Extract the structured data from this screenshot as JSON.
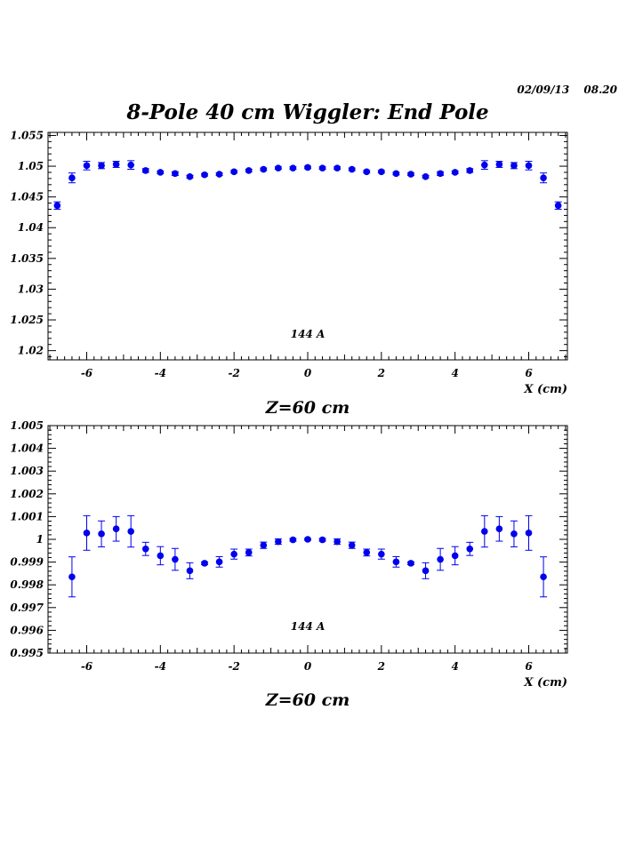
{
  "header": {
    "date": "02/09/13",
    "time": "08.20",
    "title": "8-Pole 40 cm Wiggler: End Pole"
  },
  "colors": {
    "marker": "#0000ee",
    "axis": "#000000",
    "background": "#ffffff"
  },
  "chart_data": [
    {
      "type": "scatter",
      "title": "8-Pole 40 cm Wiggler: End Pole",
      "xlabel": "X (cm)",
      "bottom_caption": "Z=60 cm",
      "annotation": "144 A",
      "xlim": [
        -7.05,
        7.05
      ],
      "ylim": [
        1.0185,
        1.0555
      ],
      "x_ticks": [
        -6,
        -4,
        -2,
        0,
        2,
        4,
        6
      ],
      "x_tick_labels": [
        "-6",
        "-4",
        "-2",
        "0",
        "2",
        "4",
        "6"
      ],
      "y_ticks": [
        1.02,
        1.025,
        1.03,
        1.035,
        1.04,
        1.045,
        1.05,
        1.055
      ],
      "y_tick_labels": [
        "1.02",
        "1.025",
        "1.03",
        "1.035",
        "1.04",
        "1.045",
        "1.05",
        "1.055"
      ],
      "series": [
        {
          "name": "144 A",
          "x": [
            -6.8,
            -6.4,
            -6.0,
            -5.6,
            -5.2,
            -4.8,
            -4.4,
            -4.0,
            -3.6,
            -3.2,
            -2.8,
            -2.4,
            -2.0,
            -1.6,
            -1.2,
            -0.8,
            -0.4,
            0.0,
            0.4,
            0.8,
            1.2,
            1.6,
            2.0,
            2.4,
            2.8,
            3.2,
            3.6,
            4.0,
            4.4,
            4.8,
            5.2,
            5.6,
            6.0,
            6.4,
            6.8
          ],
          "y": [
            1.0436,
            1.0481,
            1.0501,
            1.0501,
            1.0503,
            1.0502,
            1.0493,
            1.049,
            1.0488,
            1.0483,
            1.0486,
            1.0487,
            1.0491,
            1.0493,
            1.0495,
            1.0497,
            1.0497,
            1.0498,
            1.0497,
            1.0497,
            1.0495,
            1.0491,
            1.0491,
            1.0488,
            1.0487,
            1.0483,
            1.0488,
            1.049,
            1.0493,
            1.0502,
            1.0503,
            1.0501,
            1.0501,
            1.0481,
            1.0436
          ],
          "yerr": [
            0.0006,
            0.0008,
            0.0007,
            0.0005,
            0.0005,
            0.0007,
            0.0003,
            0.0002,
            0.0003,
            0.0002,
            0.0002,
            0.0002,
            0.0002,
            0.0002,
            0.0002,
            0.0002,
            0.0002,
            0.0002,
            0.0002,
            0.0002,
            0.0002,
            0.0002,
            0.0002,
            0.0002,
            0.0002,
            0.0002,
            0.0003,
            0.0002,
            0.0003,
            0.0007,
            0.0005,
            0.0005,
            0.0007,
            0.0008,
            0.0006
          ]
        }
      ]
    },
    {
      "type": "scatter",
      "xlabel": "X (cm)",
      "bottom_caption": "Z=60 cm",
      "annotation": "144 A",
      "xlim": [
        -7.05,
        7.05
      ],
      "ylim": [
        0.995,
        1.005
      ],
      "x_ticks": [
        -6,
        -4,
        -2,
        0,
        2,
        4,
        6
      ],
      "x_tick_labels": [
        "-6",
        "-4",
        "-2",
        "0",
        "2",
        "4",
        "6"
      ],
      "y_ticks": [
        0.995,
        0.996,
        0.997,
        0.998,
        0.999,
        1.0,
        1.001,
        1.002,
        1.003,
        1.004,
        1.005
      ],
      "y_tick_labels": [
        "0.995",
        "0.996",
        "0.997",
        "0.998",
        "0.999",
        "1",
        "1.001",
        "1.002",
        "1.003",
        "1.004",
        "1.005"
      ],
      "series": [
        {
          "name": "144 A",
          "x": [
            -6.4,
            -6.0,
            -5.6,
            -5.2,
            -4.8,
            -4.4,
            -4.0,
            -3.6,
            -3.2,
            -2.8,
            -2.4,
            -2.0,
            -1.6,
            -1.2,
            -0.8,
            -0.4,
            0.0,
            0.4,
            0.8,
            1.2,
            1.6,
            2.0,
            2.4,
            2.8,
            3.2,
            3.6,
            4.0,
            4.4,
            4.8,
            5.2,
            5.6,
            6.0,
            6.4
          ],
          "y": [
            0.99835,
            1.00028,
            1.00024,
            1.00046,
            1.00035,
            0.99958,
            0.99928,
            0.99912,
            0.99862,
            0.99895,
            0.99901,
            0.99935,
            0.99942,
            0.99974,
            0.9999,
            0.99998,
            1.0,
            0.99998,
            0.9999,
            0.99974,
            0.99942,
            0.99935,
            0.99901,
            0.99895,
            0.99862,
            0.99912,
            0.99928,
            0.99958,
            1.00035,
            1.00046,
            1.00024,
            1.00028,
            0.99835
          ],
          "yerr": [
            0.00088,
            0.00076,
            0.00057,
            0.00054,
            0.00069,
            0.00029,
            0.0004,
            0.00048,
            0.00035,
            6e-05,
            0.00023,
            0.00022,
            0.00015,
            0.00014,
            0.00012,
            6e-05,
            4e-05,
            6e-05,
            0.00012,
            0.00014,
            0.00015,
            0.00022,
            0.00023,
            6e-05,
            0.00035,
            0.00048,
            0.0004,
            0.00029,
            0.00069,
            0.00054,
            0.00057,
            0.00076,
            0.00088
          ]
        }
      ]
    }
  ]
}
